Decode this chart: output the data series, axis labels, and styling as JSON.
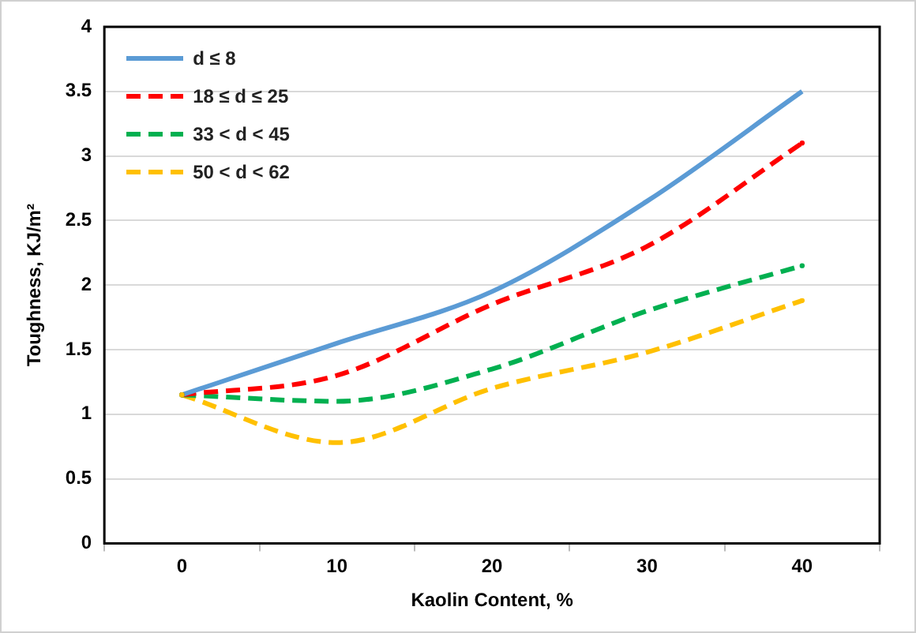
{
  "chart_data": {
    "type": "line",
    "xlabel": "Kaolin Content, %",
    "ylabel": "Toughness, KJ/m²",
    "categories": [
      "0",
      "10",
      "20",
      "30",
      "40"
    ],
    "series": [
      {
        "name": "d ≤ 8",
        "color": "#5b9bd5",
        "line_style": "solid",
        "values": [
          1.15,
          1.55,
          1.95,
          2.65,
          3.5
        ]
      },
      {
        "name": "18 ≤ d ≤ 25",
        "color": "#ff0000",
        "line_style": "dashed",
        "values": [
          1.15,
          1.3,
          1.85,
          2.3,
          3.1
        ]
      },
      {
        "name": "33 < d < 45",
        "color": "#00b050",
        "line_style": "dashed",
        "values": [
          1.15,
          1.1,
          1.35,
          1.8,
          2.15
        ]
      },
      {
        "name": "50 < d < 62",
        "color": "#ffc000",
        "line_style": "dashed",
        "values": [
          1.15,
          0.78,
          1.2,
          1.48,
          1.88
        ]
      }
    ],
    "ylim": [
      0,
      4
    ],
    "yticks": [
      0,
      0.5,
      1,
      1.5,
      2,
      2.5,
      3,
      3.5,
      4
    ],
    "grid": "y",
    "legend": "top left",
    "marker": "none"
  }
}
